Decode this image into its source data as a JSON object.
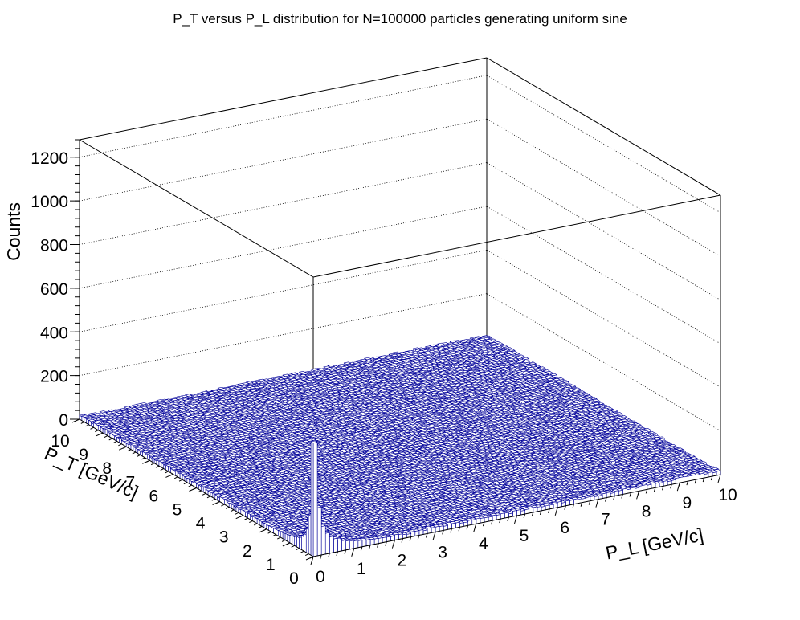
{
  "chart_data": {
    "type": "lego-3d-histogram",
    "title": "P_T versus P_L distribution for N=100000 particles generating uniform sine",
    "xlabel": "P_L [GeV/c]",
    "ylabel": "P_T [GeV/c]",
    "zlabel": "Counts",
    "xlim": [
      0,
      10
    ],
    "ylim": [
      0,
      10
    ],
    "zlim": [
      0,
      1280
    ],
    "x_ticks": [
      "0",
      "1",
      "2",
      "3",
      "4",
      "5",
      "6",
      "7",
      "8",
      "9",
      "10"
    ],
    "y_ticks": [
      "0",
      "1",
      "2",
      "3",
      "4",
      "5",
      "6",
      "7",
      "8",
      "9",
      "10"
    ],
    "z_ticks": [
      "0",
      "200",
      "400",
      "600",
      "800",
      "1000",
      "1200"
    ],
    "bins_x": 100,
    "bins_y": 100,
    "peak_bin": {
      "x": 0.05,
      "y": 0.05,
      "count": 520
    },
    "pl_axis_edge_counts": [
      520,
      220,
      130,
      95,
      75,
      62,
      52,
      46,
      41,
      37,
      34,
      31,
      29,
      27,
      25,
      24,
      23,
      22,
      21,
      20
    ],
    "pt_axis_edge_counts": [
      520,
      180,
      110,
      80,
      65,
      55,
      48,
      43,
      39,
      36,
      33,
      31,
      29,
      27,
      26,
      25,
      24,
      23,
      22,
      21
    ],
    "background_count": 12,
    "grid": true,
    "bar_fill_color": "#ffffff",
    "bar_line_color": "#000099"
  }
}
